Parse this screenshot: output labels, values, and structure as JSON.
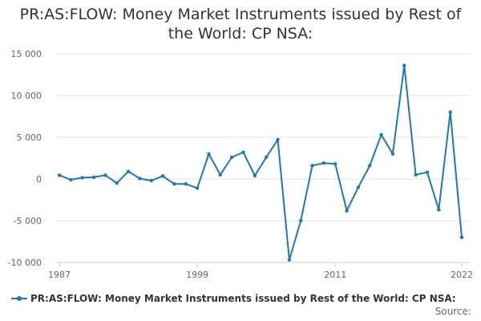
{
  "title": {
    "line1": "PR:AS:FLOW: Money Market Instruments issued by Rest of",
    "line2": "the World: CP NSA:"
  },
  "source_label": "Source:",
  "colors": {
    "series": "#1f78b4",
    "grid": "#e6e6e6",
    "axis_text": "#666666"
  },
  "chart_data": {
    "type": "line",
    "title": "PR:AS:FLOW: Money Market Instruments issued by Rest of the World: CP NSA:",
    "xlabel": "",
    "ylabel": "",
    "xlim": [
      1987,
      2022
    ],
    "ylim": [
      -10000,
      15000
    ],
    "x_ticks": [
      1987,
      1999,
      2011,
      2022
    ],
    "x_tick_labels": [
      "1987",
      "1999",
      "2011",
      "2022"
    ],
    "y_ticks": [
      -10000,
      -5000,
      0,
      5000,
      10000,
      15000
    ],
    "y_tick_labels": [
      "-10 000",
      "-5 000",
      "0",
      "5 000",
      "10 000",
      "15 000"
    ],
    "grid": true,
    "legend_position": "bottom-left",
    "series": [
      {
        "name": "PR:AS:FLOW: Money Market Instruments issued by Rest of the World: CP NSA:",
        "x": [
          1987,
          1988,
          1989,
          1990,
          1991,
          1992,
          1993,
          1994,
          1995,
          1996,
          1997,
          1998,
          1999,
          2000,
          2001,
          2002,
          2003,
          2004,
          2005,
          2006,
          2007,
          2008,
          2009,
          2010,
          2011,
          2012,
          2013,
          2014,
          2015,
          2016,
          2017,
          2018,
          2019,
          2020,
          2021,
          2022
        ],
        "values": [
          450,
          -100,
          150,
          200,
          450,
          -500,
          900,
          50,
          -200,
          350,
          -600,
          -600,
          -1100,
          3000,
          500,
          2600,
          3200,
          400,
          2600,
          4700,
          -9700,
          -5000,
          1600,
          1900,
          1800,
          -3800,
          -1000,
          1600,
          5300,
          3000,
          13600,
          500,
          800,
          -3700,
          8000,
          -7000
        ]
      }
    ]
  }
}
